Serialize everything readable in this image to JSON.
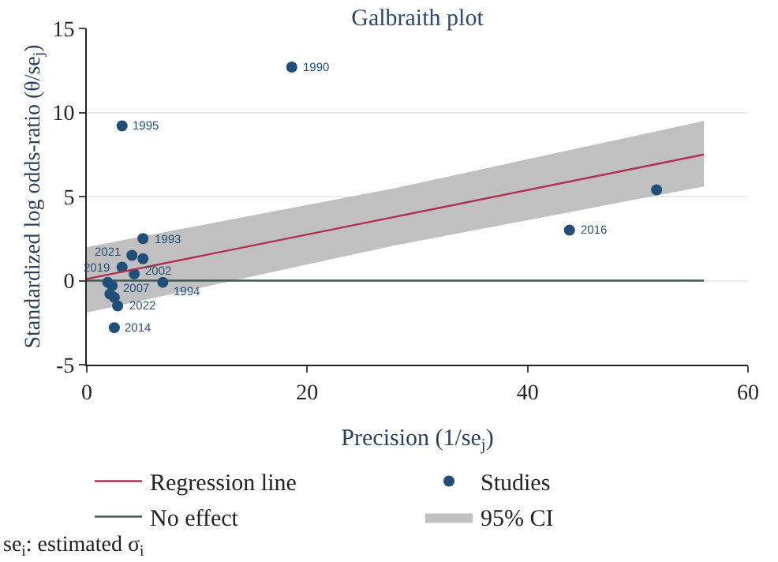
{
  "chart_data": {
    "type": "scatter",
    "title": "Galbraith plot",
    "xlabel": "Precision (1/se$_{j}$)",
    "ylabel": "Standardized log odds-ratio (θ/se$_{j}$)",
    "xlim": [
      0,
      60
    ],
    "xticks": [
      0,
      20,
      40,
      60
    ],
    "ylim": [
      -5,
      15
    ],
    "yticks": [
      -5,
      0,
      5,
      10,
      15
    ],
    "grid": "y",
    "legend": "bottom",
    "series": [
      {
        "name": "95% CI",
        "type": "area",
        "color": "#c0c0c0"
      },
      {
        "name": "No effect",
        "type": "line",
        "color": "#3d5a50",
        "x": [
          0,
          56
        ],
        "values": [
          0,
          0
        ]
      },
      {
        "name": "Studies",
        "marker": "circle",
        "color": "#1f4e79",
        "x": [
          18.6,
          3.2,
          5.1,
          4.1,
          5.1,
          3.2,
          4.3,
          6.9,
          1.9,
          2.3,
          2.1,
          2.5,
          2.8,
          2.5,
          43.8,
          51.7
        ],
        "values": [
          12.7,
          9.2,
          2.5,
          1.5,
          1.3,
          0.8,
          0.4,
          -0.1,
          -0.1,
          -0.3,
          -0.8,
          -1.0,
          -1.5,
          -2.8,
          3.0,
          5.4
        ]
      },
      {
        "name": "Regression line",
        "type": "line",
        "color": "#b03050",
        "x": [
          0,
          28,
          56
        ],
        "values": [
          0.1,
          3.8,
          7.5
        ],
        "lower": [
          -1.9,
          2.1,
          5.6
        ],
        "upper": [
          2.0,
          5.5,
          9.5
        ]
      }
    ],
    "annotations": [
      {
        "text": "1990",
        "x": 18.6,
        "y": 12.7
      },
      {
        "text": "1995",
        "x": 3.2,
        "y": 9.2
      },
      {
        "text": "1993",
        "x": 5.1,
        "y": 2.5
      },
      {
        "text": "2021",
        "x": 4.1,
        "y": 1.5
      },
      {
        "text": "2019",
        "x": 3.2,
        "y": 0.8
      },
      {
        "text": "2002",
        "x": 4.3,
        "y": 0.4
      },
      {
        "text": "1994",
        "x": 6.9,
        "y": -0.1
      },
      {
        "text": "2007",
        "x": 2.3,
        "y": -0.3
      },
      {
        "text": "2022",
        "x": 2.8,
        "y": -1.5
      },
      {
        "text": "2014",
        "x": 2.5,
        "y": -2.8
      },
      {
        "text": "2016",
        "x": 43.8,
        "y": 3.0
      },
      "se$_{i}$: estimated σ$_{i}$"
    ]
  }
}
